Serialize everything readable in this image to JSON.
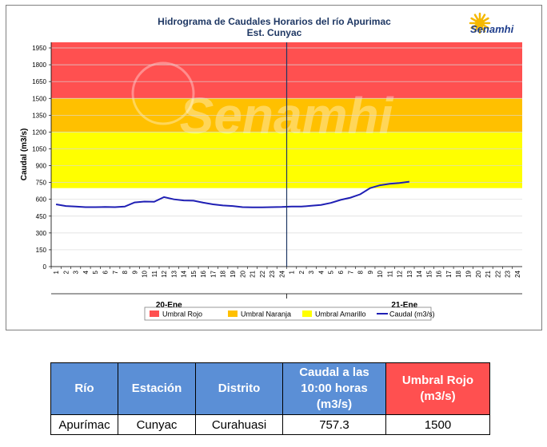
{
  "chart_data": {
    "type": "line",
    "title": "Hidrograma de Caudales Horarios del río Apurimac",
    "subtitle": "Est. Cunyac",
    "ylabel": "Caudal  (m3/s)",
    "ylim": [
      0,
      2000
    ],
    "yticks": [
      0,
      150,
      300,
      450,
      600,
      750,
      900,
      1050,
      1200,
      1350,
      1500,
      1650,
      1800,
      1950
    ],
    "x_hour_labels": [
      "1",
      "2",
      "3",
      "4",
      "5",
      "6",
      "7",
      "8",
      "9",
      "10",
      "11",
      "12",
      "13",
      "14",
      "15",
      "16",
      "17",
      "18",
      "19",
      "20",
      "21",
      "22",
      "23",
      "24"
    ],
    "day_labels": [
      "20-Ene",
      "21-Ene"
    ],
    "bands": [
      {
        "name": "Umbral Rojo",
        "from": 1500,
        "to": 2000,
        "color": "#ff5050"
      },
      {
        "name": "Umbral Naranja",
        "from": 1200,
        "to": 1500,
        "color": "#ffc000"
      },
      {
        "name": "Umbral Amarillo",
        "from": 700,
        "to": 1200,
        "color": "#ffff00"
      }
    ],
    "series": [
      {
        "name": "Caudal (m3/s)",
        "color": "#1f1fb4",
        "values": [
          555,
          540,
          535,
          530,
          530,
          532,
          530,
          535,
          572,
          580,
          578,
          620,
          600,
          590,
          588,
          570,
          555,
          545,
          540,
          530,
          528,
          528,
          530,
          532,
          535,
          535,
          542,
          550,
          568,
          595,
          615,
          645,
          700,
          725,
          738,
          745,
          757.3
        ]
      }
    ],
    "legend": [
      "Umbral Rojo",
      "Umbral Naranja",
      "Umbral Amarillo",
      "Caudal (m3/s)"
    ],
    "legend_position": "bottom"
  },
  "logo": {
    "text": "Senamhi",
    "watermark": "Senamhi"
  },
  "table": {
    "headers": [
      "Río",
      "Estación",
      "Distrito",
      "Caudal a las 10:00 horas (m3/s)",
      "Umbral Rojo (m3/s)"
    ],
    "row": [
      "Apurímac",
      "Cunyac",
      "Curahuasi",
      "757.3",
      "1500"
    ]
  }
}
